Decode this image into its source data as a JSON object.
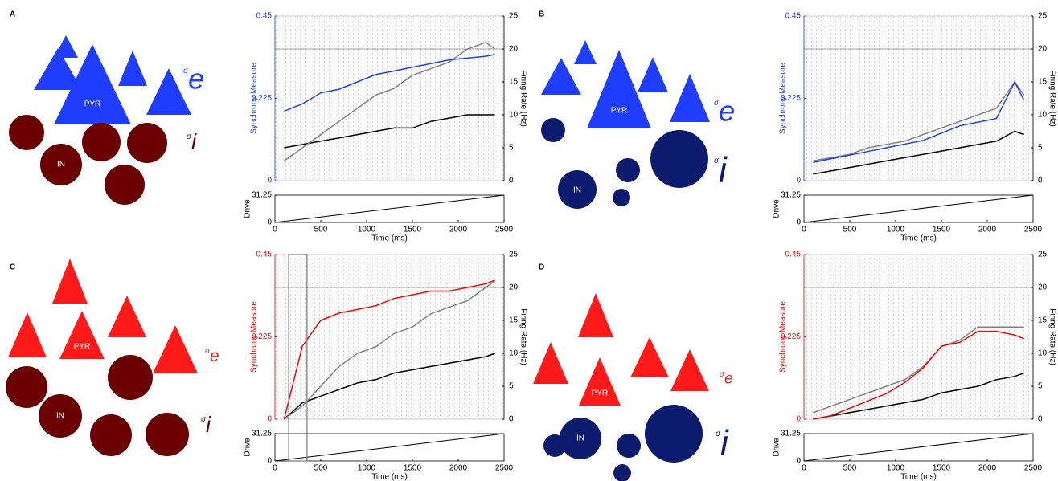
{
  "panels": [
    {
      "label": "A",
      "pyr": "PYR",
      "in": "IN",
      "sigma_e": "σ",
      "e": "e",
      "sigma_i": "σ",
      "i": "i"
    },
    {
      "label": "B",
      "pyr": "PYR",
      "in": "IN",
      "sigma_e": "σ",
      "e": "e",
      "sigma_i": "σ",
      "i": "i"
    },
    {
      "label": "C",
      "pyr": "PYR",
      "in": "IN",
      "sigma_e": "σ",
      "e": "e",
      "sigma_i": "σ",
      "i": "i"
    },
    {
      "label": "D",
      "pyr": "PYR",
      "in": "IN",
      "sigma_e": "σ",
      "e": "e",
      "sigma_i": "σ",
      "i": "i"
    }
  ],
  "chart_data": [
    {
      "type": "line",
      "ylabel": "Synchrony Measure",
      "y2label": "Firing Rate (Hz)",
      "xlabel": "Time (ms)",
      "x": [
        100,
        300,
        500,
        700,
        900,
        1100,
        1300,
        1500,
        1700,
        1900,
        2100,
        2300,
        2400
      ],
      "series": [
        {
          "color": "#1f3dff",
          "values": [
            0.19,
            0.21,
            0.24,
            0.25,
            0.27,
            0.29,
            0.3,
            0.31,
            0.32,
            0.33,
            0.335,
            0.34,
            0.345
          ]
        },
        {
          "color": "#808080",
          "axis": "y2",
          "values": [
            3,
            5,
            7,
            9,
            11,
            13,
            14,
            16,
            17,
            18,
            20,
            21,
            20
          ]
        },
        {
          "color": "#000000",
          "axis": "y2",
          "values": [
            5,
            5.5,
            6,
            6.5,
            7,
            7.5,
            8,
            8,
            9,
            9.5,
            10,
            10,
            10
          ]
        }
      ],
      "reference_line_y2": 20,
      "xlim": [
        0,
        2500
      ],
      "xticks": [
        0,
        500,
        1000,
        1500,
        2000,
        2500
      ],
      "ylim": [
        0,
        0.45
      ],
      "yticks": [
        0,
        0.225,
        0.45
      ],
      "y2lim": [
        0,
        25
      ],
      "y2ticks": [
        0,
        5,
        10,
        15,
        20,
        25
      ],
      "drive": {
        "ylabel": "Drive",
        "ylim": [
          0,
          31.25
        ],
        "yticks": [
          0,
          31.25
        ],
        "x": [
          0,
          2500
        ],
        "values": [
          0,
          31.25
        ]
      }
    },
    {
      "type": "line",
      "ylabel": "Synchrony Measure",
      "y2label": "Firing Rate (Hz)",
      "xlabel": "Time (ms)",
      "x": [
        100,
        300,
        500,
        700,
        900,
        1100,
        1300,
        1500,
        1700,
        1900,
        2100,
        2300,
        2400
      ],
      "series": [
        {
          "color": "#1f3dff",
          "values": [
            0.05,
            0.06,
            0.07,
            0.08,
            0.09,
            0.1,
            0.11,
            0.13,
            0.15,
            0.16,
            0.17,
            0.27,
            0.22
          ]
        },
        {
          "color": "#808080",
          "axis": "y2",
          "values": [
            3,
            3.5,
            4,
            5,
            5.5,
            6,
            7,
            8,
            9,
            10,
            11,
            15,
            13
          ]
        },
        {
          "color": "#000000",
          "axis": "y2",
          "values": [
            1,
            1.5,
            2,
            2.5,
            3,
            3.5,
            4,
            4.5,
            5,
            5.5,
            6,
            7.5,
            7
          ]
        }
      ],
      "reference_line_y2": 20,
      "xlim": [
        0,
        2500
      ],
      "xticks": [
        0,
        500,
        1000,
        1500,
        2000,
        2500
      ],
      "ylim": [
        0,
        0.45
      ],
      "yticks": [
        0,
        0.225,
        0.45
      ],
      "y2lim": [
        0,
        25
      ],
      "y2ticks": [
        0,
        5,
        10,
        15,
        20,
        25
      ],
      "drive": {
        "ylabel": "Drive",
        "ylim": [
          0,
          31.25
        ],
        "yticks": [
          0,
          31.25
        ],
        "x": [
          0,
          2500
        ],
        "values": [
          0,
          31.25
        ]
      }
    },
    {
      "type": "line",
      "ylabel": "Synchrony Measure",
      "y2label": "Firing Rate (Hz)",
      "xlabel": "Time (ms)",
      "x": [
        100,
        300,
        500,
        700,
        900,
        1100,
        1300,
        1500,
        1700,
        1900,
        2100,
        2300,
        2400
      ],
      "series": [
        {
          "color": "#ff0000",
          "values": [
            0,
            0.2,
            0.27,
            0.29,
            0.3,
            0.31,
            0.33,
            0.34,
            0.35,
            0.35,
            0.36,
            0.37,
            0.38
          ]
        },
        {
          "color": "#808080",
          "axis": "y2",
          "values": [
            0,
            2,
            5,
            8,
            10,
            11,
            13,
            14,
            16,
            17,
            18,
            20,
            21
          ]
        },
        {
          "color": "#000000",
          "axis": "y2",
          "values": [
            0,
            2.5,
            3.5,
            4.5,
            5.5,
            6,
            7,
            7.5,
            8,
            8.5,
            9,
            9.5,
            10
          ]
        }
      ],
      "reference_line_y2": 20,
      "highlight_xlim": [
        150,
        350
      ],
      "xlim": [
        0,
        2500
      ],
      "xticks": [
        0,
        500,
        1000,
        1500,
        2000,
        2500
      ],
      "ylim": [
        0,
        0.45
      ],
      "yticks": [
        0,
        0.225,
        0.45
      ],
      "y2lim": [
        0,
        25
      ],
      "y2ticks": [
        0,
        5,
        10,
        15,
        20,
        25
      ],
      "drive": {
        "ylabel": "Drive",
        "ylim": [
          0,
          31.25
        ],
        "yticks": [
          0,
          31.25
        ],
        "x": [
          0,
          2500
        ],
        "values": [
          0,
          31.25
        ]
      }
    },
    {
      "type": "line",
      "ylabel": "Synchrony Measure",
      "y2label": "Firing Rate (Hz)",
      "xlabel": "Time (ms)",
      "x": [
        100,
        300,
        500,
        700,
        900,
        1100,
        1300,
        1500,
        1700,
        1900,
        2100,
        2300,
        2400
      ],
      "series": [
        {
          "color": "#ff0000",
          "values": [
            0,
            0.01,
            0.03,
            0.05,
            0.07,
            0.1,
            0.14,
            0.2,
            0.21,
            0.24,
            0.24,
            0.23,
            0.22
          ]
        },
        {
          "color": "#808080",
          "axis": "y2",
          "values": [
            1,
            2,
            3,
            4,
            5,
            6,
            8,
            11,
            12,
            14,
            14,
            14,
            14
          ]
        },
        {
          "color": "#000000",
          "axis": "y2",
          "values": [
            0,
            0.5,
            1,
            1.5,
            2,
            2.5,
            3,
            4,
            4.5,
            5,
            6,
            6.5,
            7
          ]
        }
      ],
      "reference_line_y2": 20,
      "xlim": [
        0,
        2500
      ],
      "xticks": [
        0,
        500,
        1000,
        1500,
        2000,
        2500
      ],
      "ylim": [
        0,
        0.45
      ],
      "yticks": [
        0,
        0.225,
        0.45
      ],
      "y2lim": [
        0,
        25
      ],
      "y2ticks": [
        0,
        5,
        10,
        15,
        20,
        25
      ],
      "drive": {
        "ylabel": "Drive",
        "ylim": [
          0,
          31.25
        ],
        "yticks": [
          0,
          31.25
        ],
        "x": [
          0,
          2500
        ],
        "values": [
          0,
          31.25
        ]
      }
    }
  ]
}
